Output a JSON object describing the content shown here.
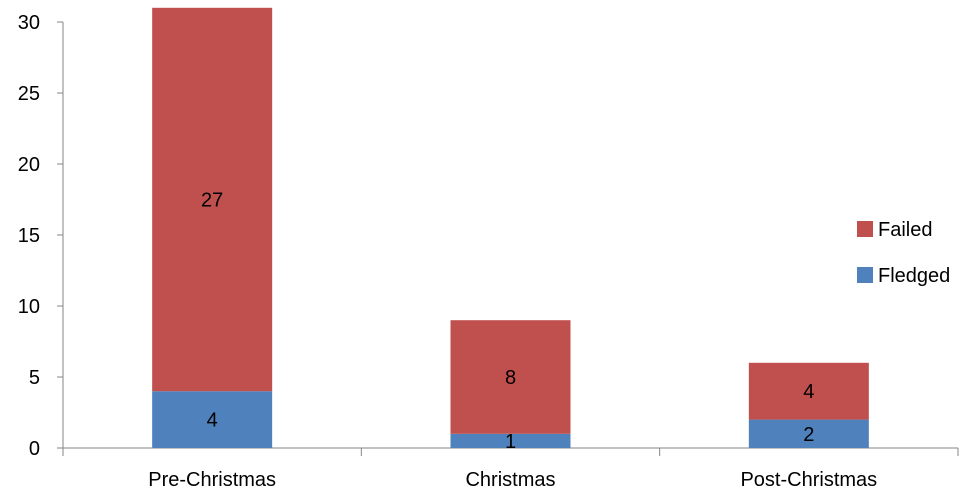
{
  "chart_data": {
    "type": "bar",
    "stacked": true,
    "categories": [
      "Pre-Christmas",
      "Christmas",
      "Post-Christmas"
    ],
    "series": [
      {
        "name": "Fledged",
        "values": [
          4,
          1,
          2
        ],
        "color": "#4f81bd"
      },
      {
        "name": "Failed",
        "values": [
          27,
          8,
          4
        ],
        "color": "#c0504d"
      }
    ],
    "ylim": [
      0,
      30
    ],
    "yticks": [
      0,
      5,
      10,
      15,
      20,
      25,
      30
    ],
    "grid": false,
    "legend_position": "right"
  }
}
